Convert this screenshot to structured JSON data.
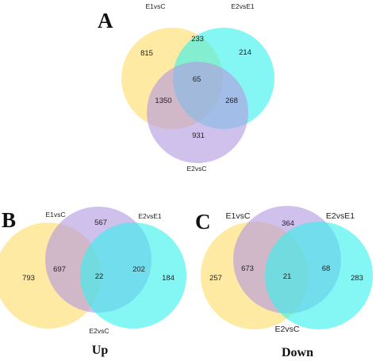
{
  "colors": {
    "yellow": "#FFDD6B",
    "cyan": "#38F0EE",
    "purple": "#B39AE0"
  },
  "panel_a": {
    "letter": "A",
    "sets": [
      "E1vsC",
      "E2vsE1",
      "E2vsC"
    ],
    "regions": {
      "only_set1": "815",
      "set1_set2": "233",
      "only_set2": "214",
      "all": "65",
      "set1_set3": "1350",
      "set2_set3": "268",
      "only_set3": "931"
    }
  },
  "panel_b": {
    "letter": "B",
    "sets": [
      "E1vsC",
      "E2vsE1",
      "E2vsC"
    ],
    "caption": "Up",
    "regions": {
      "only_set3": "567",
      "only_set1": "793",
      "set1_set3": "697",
      "all": "22",
      "set2_set3": "202",
      "only_set2": "184"
    }
  },
  "panel_c": {
    "letter": "C",
    "sets": [
      "E1vsC",
      "E2vsE1",
      "E2vsC"
    ],
    "caption": "Down",
    "regions": {
      "only_set3": "364",
      "only_set1": "257",
      "set1_set3": "673",
      "all": "21",
      "set2_set3": "68",
      "only_set2": "283"
    }
  }
}
